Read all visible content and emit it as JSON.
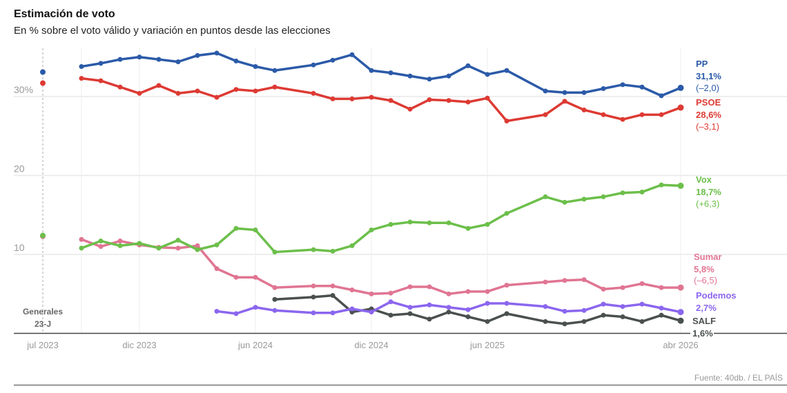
{
  "chart_data": {
    "type": "line",
    "title": "Estimación de voto",
    "subtitle": "En % sobre el voto válido y variación en puntos desde las elecciones",
    "ylim": [
      0,
      36
    ],
    "y_ticks": [
      {
        "value": 30,
        "label": "30%"
      },
      {
        "value": 20,
        "label": "20"
      },
      {
        "value": 10,
        "label": "10"
      }
    ],
    "x_ticks": [
      {
        "date": "2023-07",
        "label": "jul 2023"
      },
      {
        "date": "2023-12",
        "label": "dic 2023"
      },
      {
        "date": "2024-06",
        "label": "jun 2024"
      },
      {
        "date": "2024-12",
        "label": "dic 2024"
      },
      {
        "date": "2025-06",
        "label": "jun 2025"
      },
      {
        "date": "2026-04",
        "label": "abr 2026"
      }
    ],
    "grid": true,
    "election": {
      "date": "2023-07",
      "label_line1": "Generales",
      "label_line2": "23-J"
    },
    "dates": [
      "2023-09",
      "2023-10",
      "2023-11",
      "2023-12",
      "2024-01",
      "2024-02",
      "2024-03",
      "2024-04",
      "2024-05",
      "2024-06",
      "2024-07",
      "2024-09",
      "2024-10",
      "2024-11",
      "2024-12",
      "2025-01",
      "2025-02",
      "2025-03",
      "2025-04",
      "2025-05",
      "2025-06",
      "2025-07",
      "2025-09",
      "2025-10",
      "2025-11",
      "2025-12",
      "2026-01",
      "2026-02",
      "2026-03",
      "2026-04"
    ],
    "series": [
      {
        "name": "PP",
        "color": "#2b5aa8",
        "election_value": 33.1,
        "last_label": "31,1%",
        "change": "(–2,0)",
        "values": [
          33.8,
          34.2,
          34.7,
          35.0,
          34.7,
          34.4,
          35.2,
          35.5,
          34.5,
          33.8,
          33.3,
          34.0,
          34.6,
          35.3,
          33.3,
          33.0,
          32.6,
          32.2,
          32.6,
          33.9,
          32.8,
          33.3,
          30.7,
          30.5,
          30.5,
          31.0,
          31.5,
          31.2,
          30.1,
          31.1
        ]
      },
      {
        "name": "PSOE",
        "color": "#dd3a33",
        "election_value": 31.7,
        "last_label": "28,6%",
        "change": "(–3,1)",
        "values": [
          32.3,
          32.0,
          31.2,
          30.4,
          31.4,
          30.4,
          30.7,
          29.9,
          30.9,
          30.7,
          31.2,
          30.4,
          29.7,
          29.7,
          29.9,
          29.5,
          28.4,
          29.6,
          29.5,
          29.3,
          29.8,
          26.9,
          27.7,
          29.4,
          28.3,
          27.7,
          27.1,
          27.7,
          27.7,
          28.6
        ]
      },
      {
        "name": "Vox",
        "color": "#6cbf4a",
        "election_value": 12.4,
        "last_label": "18,7%",
        "change": "(+6,3)",
        "values": [
          10.8,
          11.7,
          11.1,
          11.4,
          10.8,
          11.8,
          10.6,
          11.2,
          13.3,
          13.1,
          10.3,
          10.6,
          10.4,
          11.1,
          13.1,
          13.8,
          14.1,
          14.0,
          14.0,
          13.3,
          13.8,
          15.2,
          17.3,
          16.6,
          17.0,
          17.3,
          17.8,
          17.9,
          18.8,
          18.7
        ]
      },
      {
        "name": "Sumar",
        "color": "#e07592",
        "election_value": 12.3,
        "last_label": "5,8%",
        "change": "(–6,5)",
        "values": [
          11.9,
          11.0,
          11.7,
          11.2,
          10.9,
          10.8,
          11.1,
          8.2,
          7.1,
          7.1,
          5.8,
          6.0,
          6.0,
          5.5,
          5.0,
          5.1,
          5.9,
          5.9,
          5.0,
          5.3,
          5.3,
          6.1,
          6.5,
          6.7,
          6.8,
          5.6,
          5.8,
          6.3,
          5.8,
          5.8
        ]
      },
      {
        "name": "Podemos",
        "color": "#8b66ee",
        "last_label": "2,7%",
        "values": [
          null,
          null,
          null,
          null,
          null,
          null,
          null,
          2.8,
          2.5,
          3.3,
          2.9,
          2.6,
          2.6,
          3.1,
          2.7,
          4.0,
          3.3,
          3.6,
          3.3,
          3.0,
          3.8,
          3.8,
          3.4,
          2.8,
          2.9,
          3.7,
          3.4,
          3.7,
          3.2,
          2.7
        ]
      },
      {
        "name": "SALF",
        "color": "#4a504f",
        "last_label": "1,6%",
        "values": [
          null,
          null,
          null,
          null,
          null,
          null,
          null,
          null,
          null,
          null,
          4.3,
          4.6,
          4.8,
          2.7,
          3.1,
          2.3,
          2.5,
          1.8,
          2.7,
          2.1,
          1.5,
          2.5,
          1.5,
          1.2,
          1.5,
          2.3,
          2.1,
          1.5,
          2.3,
          1.6
        ]
      }
    ],
    "source": "Fuente: 40db. / EL PAÍS"
  }
}
